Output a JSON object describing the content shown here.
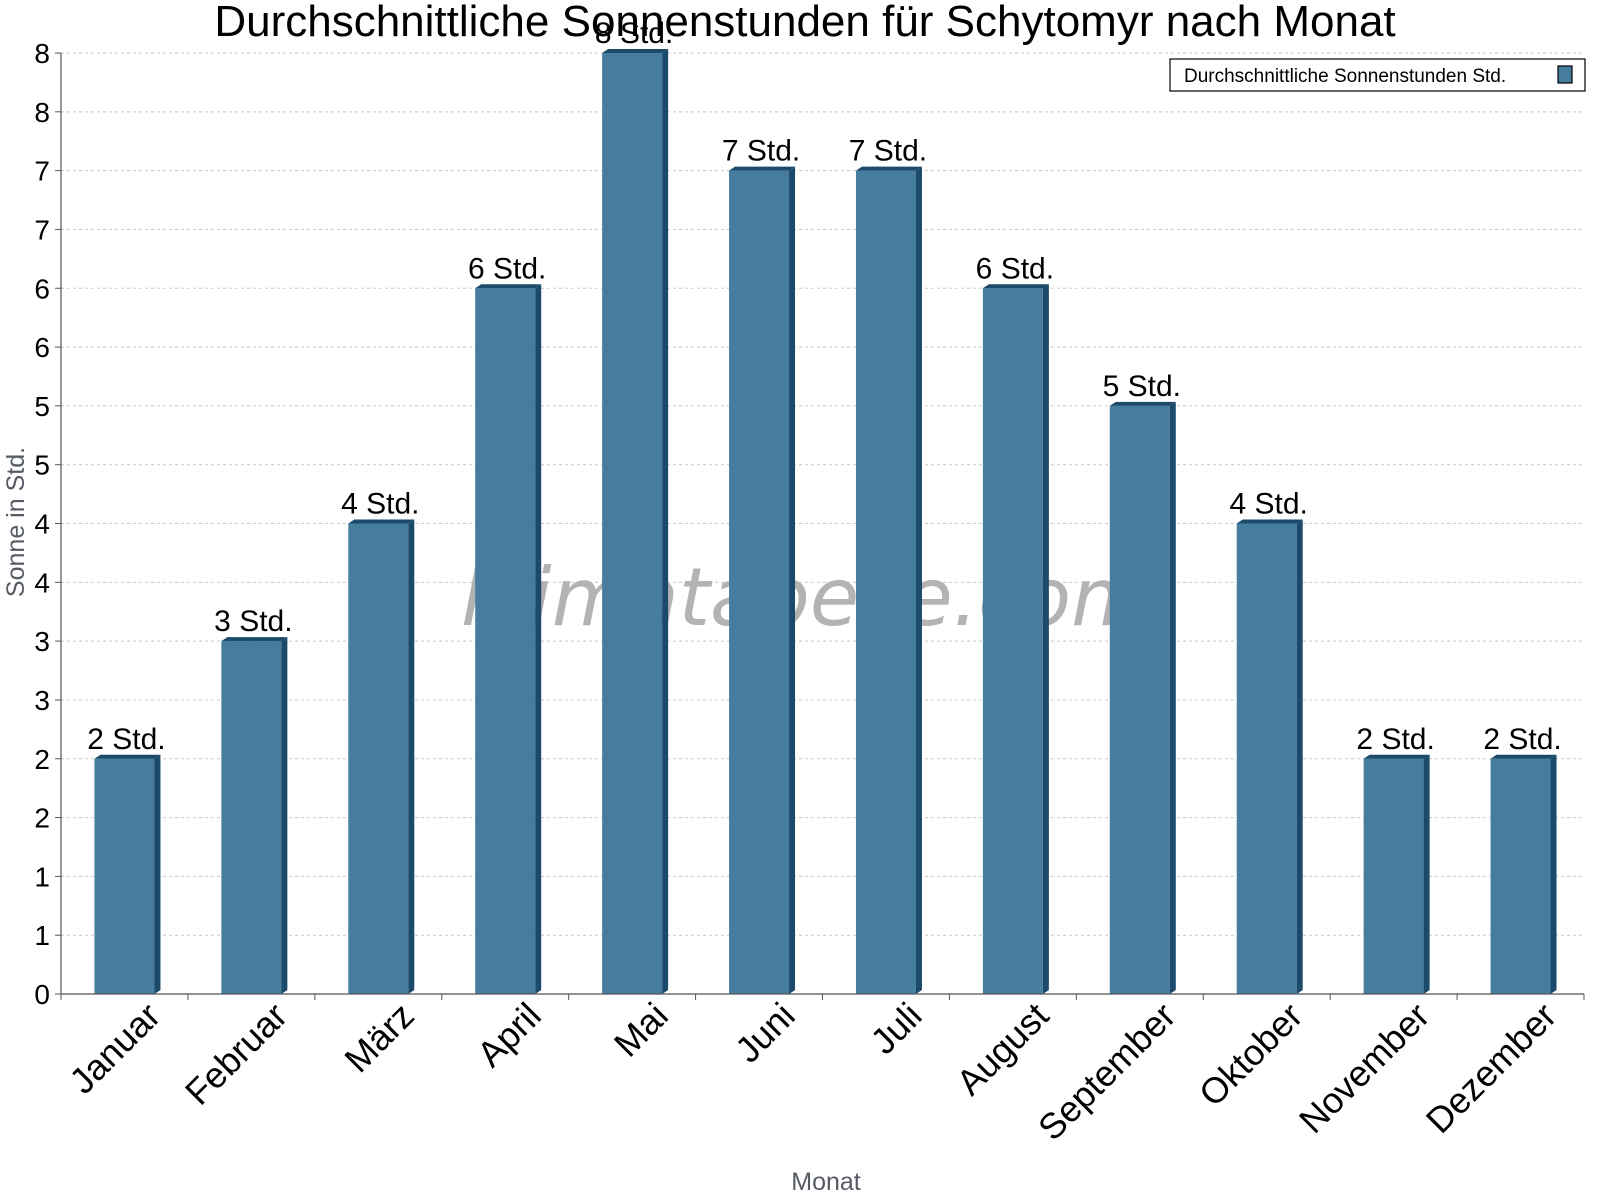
{
  "colors": {
    "bar_front": "#467c9e",
    "bar_side": "#1b4a6b",
    "bar_top": "#1b4a6b",
    "grid": "#c8c8c8",
    "axis": "#555555"
  },
  "watermark": "klimatabelle.com",
  "chart_data": {
    "type": "bar",
    "title": "Durchschnittliche Sonnenstunden für Schytomyr nach Monat",
    "xlabel": "Monat",
    "ylabel": "Sonne in Std.",
    "categories": [
      "Januar",
      "Februar",
      "März",
      "April",
      "Mai",
      "Juni",
      "Juli",
      "August",
      "September",
      "Oktober",
      "November",
      "Dezember"
    ],
    "series": [
      {
        "name": "Durchschnittliche Sonnenstunden Std.",
        "values": [
          2,
          3,
          4,
          6,
          8,
          7,
          7,
          6,
          5,
          4,
          2,
          2
        ],
        "labels": [
          "2 Std.",
          "3 Std.",
          "4 Std.",
          "6 Std.",
          "8 Std.",
          "7 Std.",
          "7 Std.",
          "6 Std.",
          "5 Std.",
          "4 Std.",
          "2 Std.",
          "2 Std."
        ]
      }
    ],
    "yticks": [
      {
        "value": 0,
        "label": "0"
      },
      {
        "value": 0.5,
        "label": "1"
      },
      {
        "value": 1,
        "label": "1"
      },
      {
        "value": 1.5,
        "label": "2"
      },
      {
        "value": 2,
        "label": "2"
      },
      {
        "value": 2.5,
        "label": "3"
      },
      {
        "value": 3,
        "label": "3"
      },
      {
        "value": 3.5,
        "label": "4"
      },
      {
        "value": 4,
        "label": "4"
      },
      {
        "value": 4.5,
        "label": "5"
      },
      {
        "value": 5,
        "label": "5"
      },
      {
        "value": 5.5,
        "label": "6"
      },
      {
        "value": 6,
        "label": "6"
      },
      {
        "value": 6.5,
        "label": "7"
      },
      {
        "value": 7,
        "label": "7"
      },
      {
        "value": 7.5,
        "label": "8"
      },
      {
        "value": 8,
        "label": "8"
      }
    ],
    "ylim": [
      0,
      8
    ],
    "grid": true,
    "legend_position": "top-right"
  }
}
